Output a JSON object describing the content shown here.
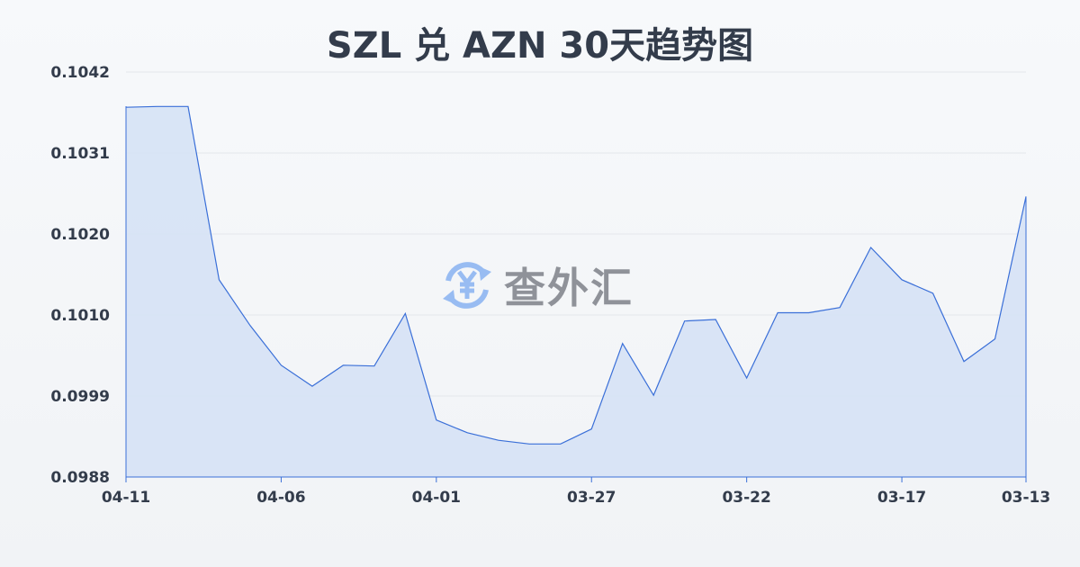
{
  "chart_data": {
    "type": "area",
    "title": "SZL 兑 AZN 30天趋势图",
    "xlabel": "",
    "ylabel": "",
    "x": [
      "04-11",
      "04-10",
      "04-09",
      "04-08",
      "04-07",
      "04-06",
      "04-05",
      "04-04",
      "04-03",
      "04-02",
      "04-01",
      "03-31",
      "03-30",
      "03-29",
      "03-28",
      "03-27",
      "03-26",
      "03-25",
      "03-24",
      "03-23",
      "03-22",
      "03-21",
      "03-20",
      "03-19",
      "03-18",
      "03-17",
      "03-16",
      "03-15",
      "03-14",
      "03-13"
    ],
    "x_tick_labels": [
      "04-11",
      "04-06",
      "04-01",
      "03-27",
      "03-22",
      "03-17",
      "03-13"
    ],
    "y_tick_labels": [
      "0.1042",
      "0.1031",
      "0.1020",
      "0.1010",
      "0.0999",
      "0.0988"
    ],
    "ylim": [
      0.0988,
      0.1042
    ],
    "values": [
      0.10373,
      0.10374,
      0.10374,
      0.10143,
      0.10082,
      0.10029,
      0.10001,
      0.10029,
      0.10028,
      0.10098,
      0.09956,
      0.09939,
      0.09929,
      0.09924,
      0.09924,
      0.09944,
      0.10058,
      0.09989,
      0.10088,
      0.1009,
      0.10012,
      0.10099,
      0.10099,
      0.10106,
      0.10186,
      0.10143,
      0.10125,
      0.10034,
      0.10064,
      0.10254
    ],
    "grid": true,
    "colors": {
      "line": "#3a6fd8",
      "fill": "#d6e2f5",
      "grid": "#e3e6ea",
      "text": "#333c4b"
    }
  },
  "watermark": {
    "text": "查外汇",
    "icon": "yen-exchange-icon",
    "color": "#8fb6f2"
  }
}
